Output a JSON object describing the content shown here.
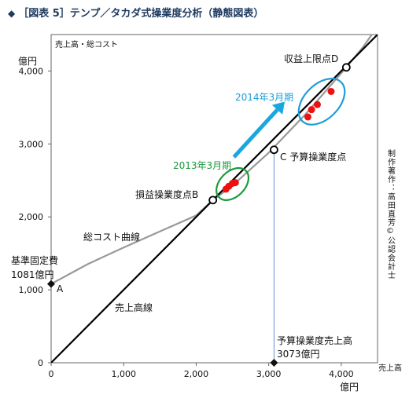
{
  "title": {
    "marker": "◆",
    "text": "［図表 5］テンプ／タカダ式操業度分析（静態図表）"
  },
  "chart_data": {
    "type": "line",
    "xlim": [
      0,
      4500
    ],
    "ylim": [
      0,
      4500
    ],
    "x_ticks": [
      0,
      1000,
      2000,
      3000,
      4000
    ],
    "x_tick_labels": [
      "0",
      "1,000",
      "2,000",
      "3,000",
      "4,000"
    ],
    "y_ticks": [
      0,
      1000,
      2000,
      3000,
      4000
    ],
    "y_tick_labels": [
      "0",
      "1,000",
      "2,000",
      "3,000",
      "4,000"
    ],
    "y_unit": "億円",
    "x_unit": "億円",
    "y_axis_label": "売上高・総コスト",
    "x_axis_label": "売上高",
    "grid": false,
    "series": [
      {
        "name": "売上高線",
        "color": "#000000",
        "points": [
          [
            0,
            0
          ],
          [
            4500,
            4500
          ]
        ]
      },
      {
        "name": "総コスト曲線",
        "color": "#999999",
        "points": [
          [
            0,
            1081
          ],
          [
            500,
            1350
          ],
          [
            1000,
            1580
          ],
          [
            1500,
            1800
          ],
          [
            2000,
            2020
          ],
          [
            2230,
            2230
          ],
          [
            2500,
            2430
          ],
          [
            3000,
            2880
          ],
          [
            3500,
            3400
          ],
          [
            4070,
            4050
          ],
          [
            4300,
            4330
          ],
          [
            4450,
            4540
          ]
        ]
      }
    ],
    "points": [
      {
        "label": "基準固定費",
        "sub_label": "1081億円",
        "letter": "A",
        "x": 0,
        "y": 1081
      },
      {
        "label": "損益操業度点",
        "letter": "B",
        "x": 2230,
        "y": 2230
      },
      {
        "label": "予算操業度点",
        "letter": "C",
        "x": 3073,
        "y": 2920
      },
      {
        "label": "収益上限点",
        "letter": "D",
        "x": 4070,
        "y": 4050
      },
      {
        "label": "予算操業度売上高",
        "sub_label": "3073億円",
        "x": 3073,
        "y": 0
      }
    ],
    "red_dots": [
      [
        2410,
        2380
      ],
      [
        2450,
        2420
      ],
      [
        2500,
        2460
      ],
      [
        2540,
        2470
      ],
      [
        3540,
        3370
      ],
      [
        3590,
        3470
      ],
      [
        3670,
        3540
      ],
      [
        3860,
        3720
      ]
    ],
    "ellipses": [
      {
        "label": "2013年3月期",
        "color": "#1a9a3a",
        "cx": 2500,
        "cy": 2450
      },
      {
        "label": "2014年3月期",
        "color": "#1e9ed6",
        "cx": 3730,
        "cy": 3580
      }
    ],
    "arrow": {
      "color": "#1aa7e0",
      "from": [
        2520,
        2820
      ],
      "to": [
        3220,
        3580
      ]
    },
    "copyright": "制作著作：高田直芳©公認会計士"
  }
}
